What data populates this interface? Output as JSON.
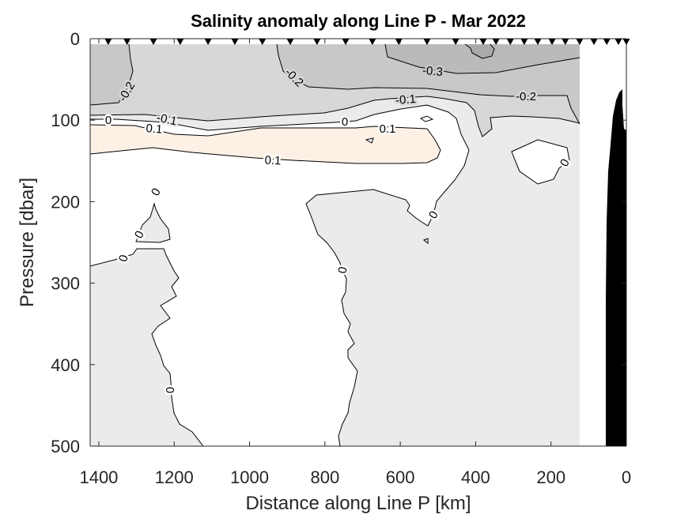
{
  "chart_data": {
    "type": "contour",
    "title": "Salinity anomaly along Line P - Mar 2022",
    "xlabel": "Distance along Line P [km]",
    "ylabel": "Pressure [dbar]",
    "xlim": [
      0,
      1423
    ],
    "x_reversed": true,
    "ylim": [
      0,
      500
    ],
    "y_reversed": true,
    "x_ticks": [
      1400,
      1200,
      1000,
      800,
      600,
      400,
      200,
      0
    ],
    "y_ticks": [
      0,
      100,
      200,
      300,
      400,
      500
    ],
    "grid": false,
    "levels": [
      -0.4,
      -0.3,
      -0.2,
      -0.1,
      0,
      0.1
    ],
    "level_colors": {
      "below_-0.4": "#aaaaaa",
      "-0.4_to_-0.3": "#bababa",
      "-0.3_to_-0.2": "#c8c8c8",
      "-0.2_to_-0.1": "#d7d7d7",
      "-0.1_to_0": "#ebebeb",
      "0_to_0.1": "#ffffff",
      "above_0.1": "#fdf1e6"
    },
    "contour_labels": [
      "-0.2",
      "-0.2",
      "-0.3",
      "-0.1",
      "-0.2",
      "0",
      "-0.1",
      "0.1",
      "0",
      "0.1",
      "0.1",
      "0",
      "0",
      "0",
      "0",
      "0",
      "0",
      "0"
    ],
    "station_markers_km": [
      1375,
      1325,
      1255,
      1184,
      1110,
      1039,
      966,
      892,
      821,
      745,
      674,
      604,
      529,
      453,
      380,
      346,
      308,
      271,
      235,
      197,
      162,
      124,
      86,
      52,
      21,
      0
    ],
    "bathymetry_color": "#000000",
    "station_marker_color": "#000000"
  }
}
